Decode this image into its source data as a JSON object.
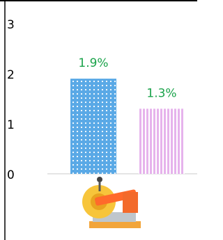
{
  "chart_data": {
    "type": "bar",
    "categories": [
      null,
      null
    ],
    "values": [
      1.9,
      1.3
    ],
    "value_labels": [
      "1.9%",
      "1.3%"
    ],
    "colors": [
      "#5aa9e6",
      "#e6b3ec"
    ],
    "ylim": [
      -1.32,
      3.47
    ],
    "yticks": [
      0,
      1,
      2,
      3
    ]
  }
}
